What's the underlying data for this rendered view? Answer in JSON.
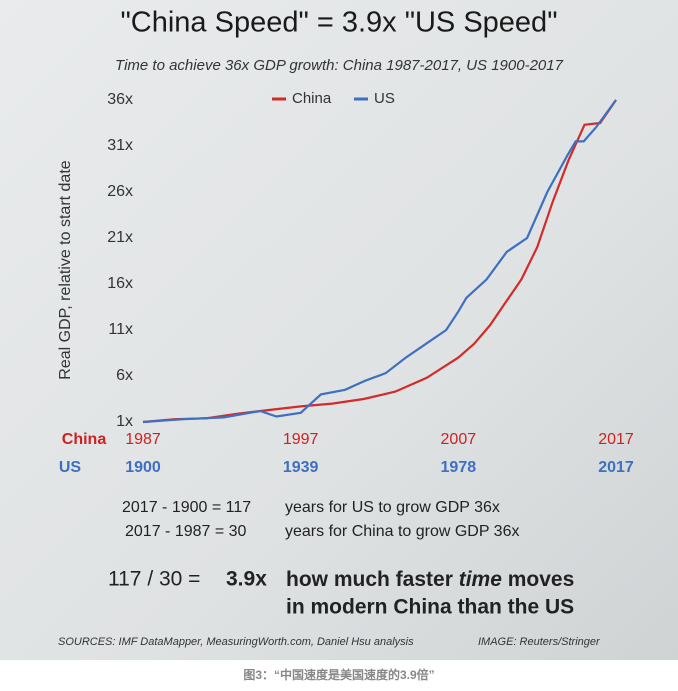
{
  "chart_data": {
    "type": "line",
    "title": "\"China Speed\" = 3.9x \"US Speed\"",
    "subtitle": "Time to achieve 36x GDP growth: China 1987-2017, US 1900-2017",
    "y_label": "Real GDP, relative to start date",
    "ylim": [
      1,
      36
    ],
    "yticks": [
      {
        "value": 1,
        "label": "1x"
      },
      {
        "value": 6,
        "label": "6x"
      },
      {
        "value": 11,
        "label": "11x"
      },
      {
        "value": 16,
        "label": "16x"
      },
      {
        "value": 21,
        "label": "21x"
      },
      {
        "value": 26,
        "label": "26x"
      },
      {
        "value": 31,
        "label": "31x"
      },
      {
        "value": 36,
        "label": "36x"
      }
    ],
    "xlim": [
      1987,
      2017
    ],
    "xticks": [
      1987,
      1997,
      2007,
      2017
    ],
    "x_label": "China",
    "x2lim": [
      1900,
      2017
    ],
    "x2ticks": [
      1900,
      1939,
      1978,
      2017
    ],
    "x2_label": "US",
    "legend": "top",
    "series": [
      {
        "name": "China",
        "color": "#d42a2a",
        "x": [
          1987,
          1989,
          1991,
          1993,
          1995,
          1997,
          1999,
          2001,
          2003,
          2005,
          2007,
          2008,
          2009,
          2010,
          2011,
          2012,
          2013,
          2014,
          2015,
          2016,
          2017
        ],
        "values": [
          1,
          1.3,
          1.4,
          1.9,
          2.3,
          2.7,
          3.0,
          3.5,
          4.3,
          5.8,
          8.0,
          9.5,
          11.5,
          14,
          16.5,
          20,
          25,
          29.5,
          33.3,
          33.5,
          36
        ]
      },
      {
        "name": "US",
        "color": "#3d6fc2",
        "axis": "x2",
        "x": [
          1900,
          1910,
          1920,
          1929,
          1933,
          1939,
          1941,
          1944,
          1950,
          1955,
          1960,
          1965,
          1970,
          1975,
          1978,
          1980,
          1985,
          1990,
          1995,
          2000,
          2005,
          2007,
          2009,
          2012,
          2017
        ],
        "values": [
          1,
          1.3,
          1.5,
          2.2,
          1.6,
          2.0,
          2.8,
          4.0,
          4.5,
          5.5,
          6.3,
          8.0,
          9.5,
          11,
          13.0,
          14.5,
          16.5,
          19.5,
          21,
          26,
          30,
          31.5,
          31.5,
          33,
          36
        ]
      }
    ],
    "annotations": [
      "2017 - 1900 = 117",
      "years for US to grow GDP 36x",
      "2017 - 1987 = 30",
      "years for China to grow GDP 36x"
    ],
    "conclusion": {
      "equation": "117 / 30 =",
      "result": "3.9x",
      "text_parts": [
        "how much faster",
        "time",
        "moves"
      ],
      "text_line2": "in modern China than the US"
    },
    "sources": "SOURCES: IMF DataMapper, MeasuringWorth.com, Daniel Hsu analysis",
    "image_credit": "IMAGE: Reuters/Stringer",
    "caption": "图3：“中国速度是美国速度的3.9倍”"
  }
}
